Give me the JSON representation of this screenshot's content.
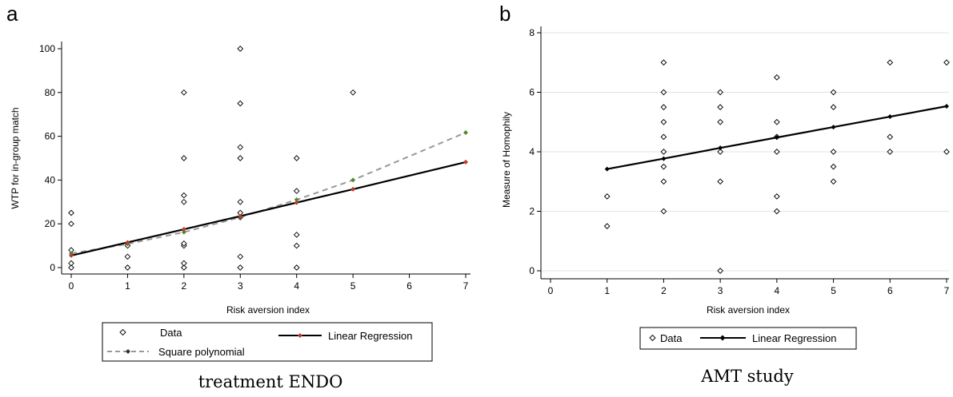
{
  "panels": [
    {
      "letter": "a",
      "caption": "treatment ENDO",
      "legend": [
        "Data",
        "Linear Regression",
        "Square polynomial"
      ]
    },
    {
      "letter": "b",
      "caption": "AMT study",
      "legend": [
        "Data",
        "Linear Regression"
      ]
    }
  ],
  "chart_data": [
    {
      "type": "scatter",
      "xlabel": "Risk aversion index",
      "ylabel": "WTP for in-group match",
      "xlim": [
        0,
        7
      ],
      "ylim": [
        0,
        100
      ],
      "xticks": [
        0,
        1,
        2,
        3,
        4,
        5,
        6,
        7
      ],
      "yticks": [
        0,
        20,
        40,
        60,
        80,
        100
      ],
      "legend_position": "bottom",
      "series": [
        {
          "name": "Data",
          "marker": "hollow-diamond",
          "points": [
            [
              0,
              0
            ],
            [
              0,
              2
            ],
            [
              0,
              8
            ],
            [
              0,
              20
            ],
            [
              0,
              25
            ],
            [
              1,
              0
            ],
            [
              1,
              5
            ],
            [
              1,
              10
            ],
            [
              2,
              0
            ],
            [
              2,
              2
            ],
            [
              2,
              10
            ],
            [
              2,
              11
            ],
            [
              2,
              30
            ],
            [
              2,
              33
            ],
            [
              2,
              50
            ],
            [
              2,
              80
            ],
            [
              3,
              0
            ],
            [
              3,
              5
            ],
            [
              3,
              23
            ],
            [
              3,
              25
            ],
            [
              3,
              30
            ],
            [
              3,
              50
            ],
            [
              3,
              55
            ],
            [
              3,
              75
            ],
            [
              3,
              100
            ],
            [
              4,
              0
            ],
            [
              4,
              10
            ],
            [
              4,
              15
            ],
            [
              4,
              35
            ],
            [
              4,
              50
            ],
            [
              5,
              80
            ]
          ]
        },
        {
          "name": "Linear Regression",
          "line": "solid",
          "color": "#000000",
          "marker_color": "#c0392b",
          "points": [
            [
              0,
              5.5
            ],
            [
              1,
              11.5
            ],
            [
              2,
              17.5
            ],
            [
              3,
              23.5
            ],
            [
              4,
              29.7
            ],
            [
              5,
              35.8
            ],
            [
              7,
              48.2
            ]
          ]
        },
        {
          "name": "Square polynomial",
          "line": "dashed",
          "color": "#999999",
          "marker_color": "#4e8a2e",
          "points": [
            [
              0,
              6.5
            ],
            [
              1,
              10.8
            ],
            [
              2,
              16.2
            ],
            [
              3,
              23
            ],
            [
              4,
              31
            ],
            [
              5,
              40
            ],
            [
              7,
              61.7
            ]
          ]
        }
      ]
    },
    {
      "type": "scatter",
      "xlabel": "Risk aversion index",
      "ylabel": "Measure of Homophily",
      "xlim": [
        0,
        7
      ],
      "ylim": [
        0,
        8
      ],
      "xticks": [
        0,
        1,
        2,
        3,
        4,
        5,
        6,
        7
      ],
      "yticks": [
        0,
        2,
        4,
        6,
        8
      ],
      "grid": true,
      "legend_position": "bottom",
      "series": [
        {
          "name": "Data",
          "marker": "hollow-diamond",
          "points": [
            [
              1,
              1.5
            ],
            [
              1,
              2.5
            ],
            [
              2,
              2
            ],
            [
              2,
              3
            ],
            [
              2,
              3.5
            ],
            [
              2,
              4
            ],
            [
              2,
              4.5
            ],
            [
              2,
              5
            ],
            [
              2,
              5.5
            ],
            [
              2,
              6
            ],
            [
              2,
              7
            ],
            [
              3,
              0
            ],
            [
              3,
              3
            ],
            [
              3,
              4
            ],
            [
              3,
              5
            ],
            [
              3,
              5.5
            ],
            [
              3,
              6
            ],
            [
              4,
              2
            ],
            [
              4,
              2.5
            ],
            [
              4,
              4
            ],
            [
              4,
              4.5
            ],
            [
              4,
              5
            ],
            [
              4,
              6.5
            ],
            [
              5,
              3
            ],
            [
              5,
              3.5
            ],
            [
              5,
              4
            ],
            [
              5,
              5.5
            ],
            [
              5,
              6
            ],
            [
              6,
              4
            ],
            [
              6,
              4.5
            ],
            [
              6,
              7
            ],
            [
              7,
              4
            ],
            [
              7,
              7
            ]
          ]
        },
        {
          "name": "Linear Regression",
          "line": "solid",
          "color": "#000000",
          "marker_color": "#000000",
          "points": [
            [
              1,
              3.42
            ],
            [
              2,
              3.77
            ],
            [
              3,
              4.13
            ],
            [
              4,
              4.48
            ],
            [
              5,
              4.83
            ],
            [
              6,
              5.18
            ],
            [
              7,
              5.53
            ]
          ]
        }
      ]
    }
  ]
}
